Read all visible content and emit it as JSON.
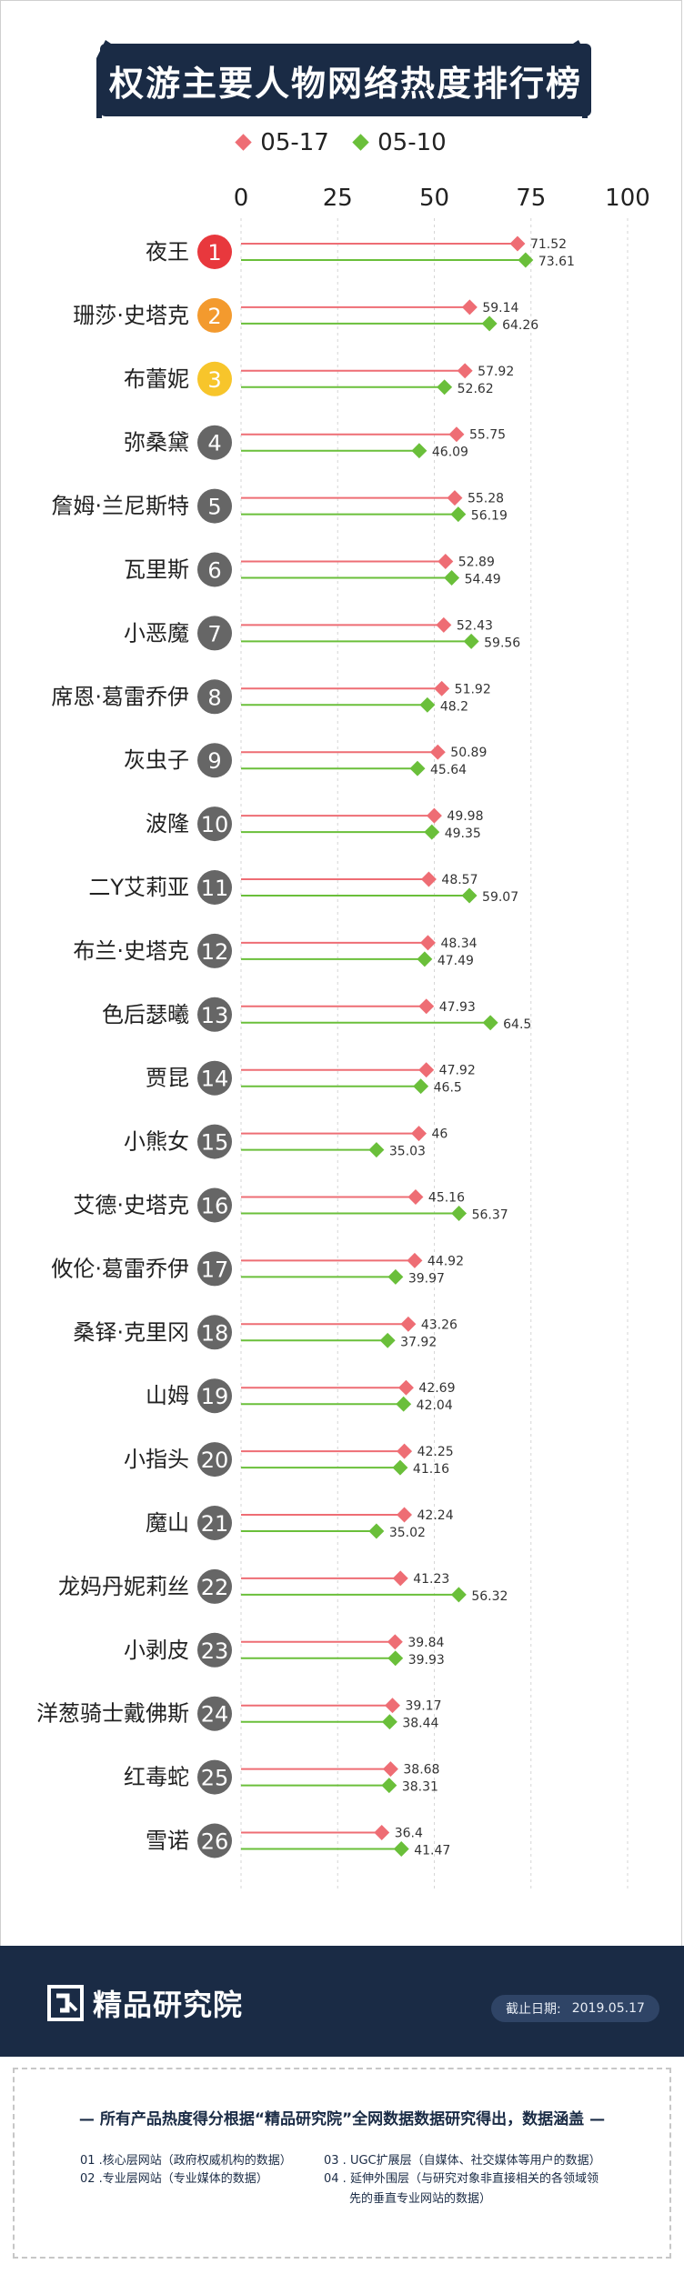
{
  "title": "权游主要人物网络热度排行榜",
  "legend": [
    {
      "label": "05-17",
      "color": "#ee6d74"
    },
    {
      "label": "05-10",
      "color": "#6abf3a"
    }
  ],
  "chart_data": {
    "type": "dot-bar",
    "title": "权游主要人物网络热度排行榜",
    "xlim": [
      0,
      100
    ],
    "xticks": [
      "0",
      "25",
      "50",
      "75",
      "100"
    ],
    "grid": true,
    "categories": [
      "夜王",
      "珊莎·史塔克",
      "布蕾妮",
      "弥桑黛",
      "詹姆·兰尼斯特",
      "瓦里斯",
      "小恶魔",
      "席恩·葛雷乔伊",
      "灰虫子",
      "波隆",
      "二Y艾莉亚",
      "布兰·史塔克",
      "色后瑟曦",
      "贾昆",
      "小熊女",
      "艾德·史塔克",
      "攸伦·葛雷乔伊",
      "桑铎·克里冈",
      "山姆",
      "小指头",
      "魔山",
      "龙妈丹妮莉丝",
      "小剥皮",
      "洋葱骑士戴佛斯",
      "红毒蛇",
      "雪诺"
    ],
    "ranks": [
      "1",
      "2",
      "3",
      "4",
      "5",
      "6",
      "7",
      "8",
      "9",
      "10",
      "11",
      "12",
      "13",
      "14",
      "15",
      "16",
      "17",
      "18",
      "19",
      "20",
      "21",
      "22",
      "23",
      "24",
      "25",
      "26"
    ],
    "rank_colors": {
      "1": "#e8383d",
      "2": "#f39a2e",
      "3": "#f7c52b",
      "other": "#666666"
    },
    "series": [
      {
        "name": "05-17",
        "color": "#ee6d74",
        "values": [
          71.52,
          59.14,
          57.92,
          55.75,
          55.28,
          52.89,
          52.43,
          51.92,
          50.89,
          49.98,
          48.57,
          48.34,
          47.93,
          47.92,
          46,
          45.16,
          44.92,
          43.26,
          42.69,
          42.25,
          42.24,
          41.23,
          39.84,
          39.17,
          38.68,
          36.4
        ]
      },
      {
        "name": "05-10",
        "color": "#6abf3a",
        "values": [
          73.61,
          64.26,
          52.62,
          46.09,
          56.19,
          54.49,
          59.56,
          48.2,
          45.64,
          49.35,
          59.07,
          47.49,
          64.5,
          46.5,
          35.03,
          56.37,
          39.97,
          37.92,
          42.04,
          41.16,
          35.02,
          56.32,
          39.93,
          38.44,
          38.31,
          41.47
        ]
      }
    ],
    "value_labels": [
      [
        "71.52",
        "73.61"
      ],
      [
        "59.14",
        "64.26"
      ],
      [
        "57.92",
        "52.62"
      ],
      [
        "55.75",
        "46.09"
      ],
      [
        "55.28",
        "56.19"
      ],
      [
        "52.89",
        "54.49"
      ],
      [
        "52.43",
        "59.56"
      ],
      [
        "51.92",
        "48.2"
      ],
      [
        "50.89",
        "45.64"
      ],
      [
        "49.98",
        "49.35"
      ],
      [
        "48.57",
        "59.07"
      ],
      [
        "48.34",
        "47.49"
      ],
      [
        "47.93",
        "64.5"
      ],
      [
        "47.92",
        "46.5"
      ],
      [
        "46",
        "35.03"
      ],
      [
        "45.16",
        "56.37"
      ],
      [
        "44.92",
        "39.97"
      ],
      [
        "43.26",
        "37.92"
      ],
      [
        "42.69",
        "42.04"
      ],
      [
        "42.25",
        "41.16"
      ],
      [
        "42.24",
        "35.02"
      ],
      [
        "41.23",
        "56.32"
      ],
      [
        "39.84",
        "39.93"
      ],
      [
        "39.17",
        "38.44"
      ],
      [
        "38.68",
        "38.31"
      ],
      [
        "36.4",
        "41.47"
      ]
    ]
  },
  "footer": {
    "logo_text": "精品研究院",
    "date_label": "截止日期:",
    "date_value": "2019.05.17"
  },
  "notes": {
    "heading": "— 所有产品热度得分根据“精品研究院”全网数据数据研究得出，数据涵盖 —",
    "items": [
      "01 .核心层网站（政府权威机构的数据）",
      "02 .专业层网站（专业媒体的数据）",
      "03 . UGC扩展层（自媒体、社交媒体等用户的数据）",
      "04 . 延伸外围层（与研究对象非直接相关的各领域领",
      "先的垂直专业网站的数据）"
    ]
  }
}
